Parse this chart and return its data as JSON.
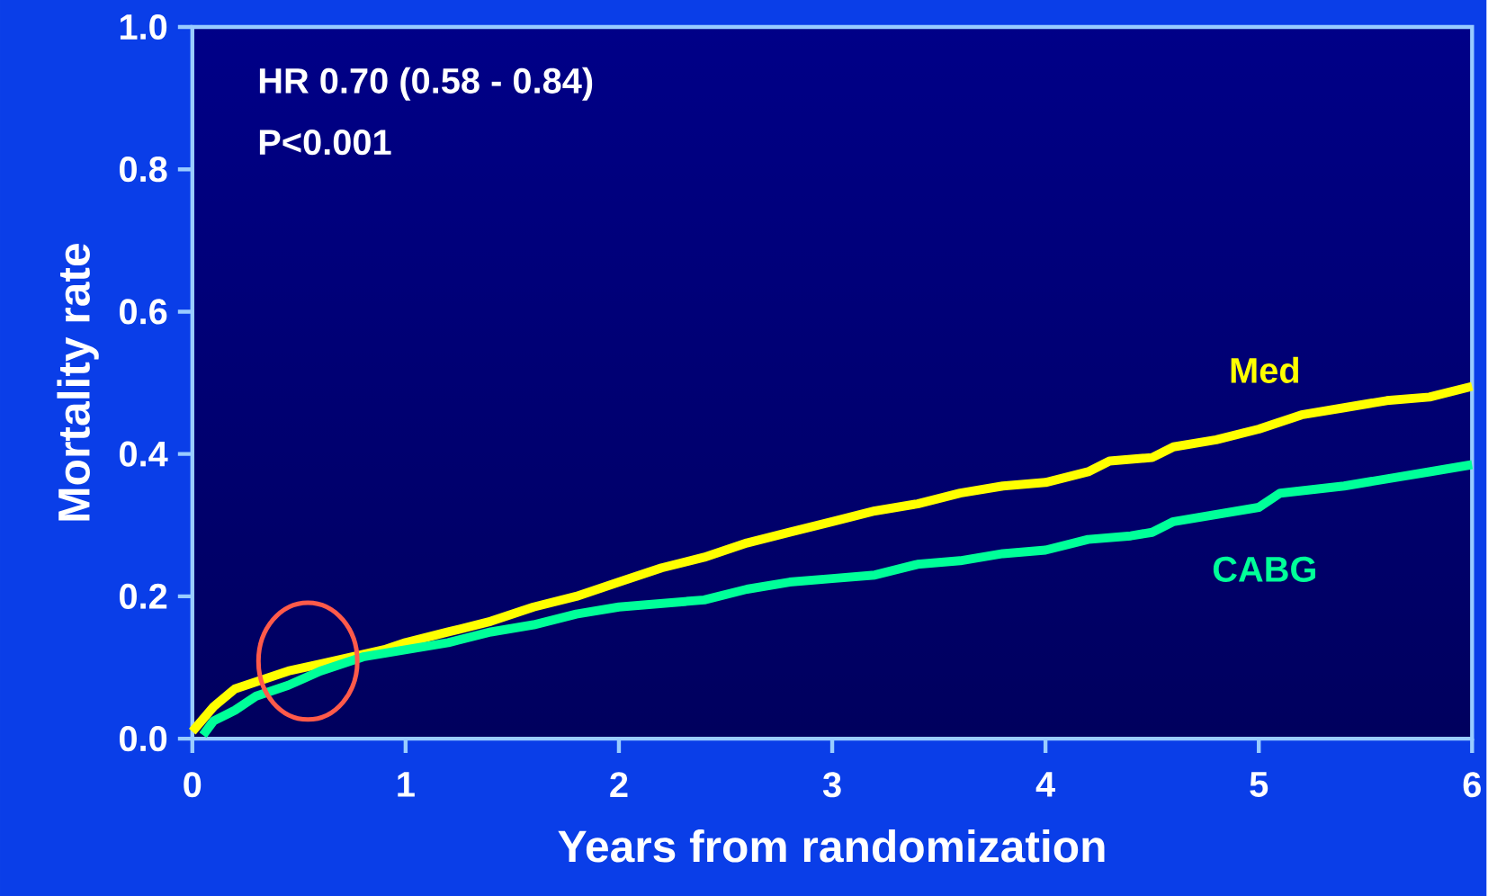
{
  "chart_data": {
    "type": "line",
    "xlabel": "Years from randomization",
    "ylabel": "Mortality rate",
    "annotations": [
      "HR 0.70 (0.58 - 0.84)",
      "P<0.001"
    ],
    "xlim": [
      0,
      6
    ],
    "ylim": [
      0,
      1
    ],
    "xticks": [
      0,
      1,
      2,
      3,
      4,
      5,
      6
    ],
    "yticks": [
      {
        "value": 0,
        "label": "0.0"
      },
      {
        "value": 0.2,
        "label": "0.2"
      },
      {
        "value": 0.4,
        "label": "0.4"
      },
      {
        "value": 0.6,
        "label": "0.6"
      },
      {
        "value": 0.8,
        "label": "0.8"
      },
      {
        "value": 1,
        "label": "1.0"
      }
    ],
    "grid": false,
    "legend": false,
    "marker": "none",
    "line_style": "solid",
    "series": [
      {
        "name": "Med",
        "color": "#ffff00",
        "x": [
          0,
          0.1,
          0.2,
          0.3,
          0.45,
          0.6,
          0.75,
          0.9,
          1.0,
          1.2,
          1.4,
          1.6,
          1.8,
          2.0,
          2.2,
          2.4,
          2.6,
          2.8,
          3.0,
          3.2,
          3.4,
          3.6,
          3.8,
          4.0,
          4.2,
          4.3,
          4.5,
          4.6,
          4.8,
          5.0,
          5.2,
          5.4,
          5.6,
          5.8,
          6.0
        ],
        "values": [
          0.01,
          0.045,
          0.07,
          0.08,
          0.095,
          0.105,
          0.115,
          0.125,
          0.135,
          0.15,
          0.165,
          0.185,
          0.2,
          0.22,
          0.24,
          0.255,
          0.275,
          0.29,
          0.305,
          0.32,
          0.33,
          0.345,
          0.355,
          0.36,
          0.375,
          0.39,
          0.395,
          0.41,
          0.42,
          0.435,
          0.455,
          0.465,
          0.475,
          0.48,
          0.495
        ]
      },
      {
        "name": "CABG",
        "color": "#00ff99",
        "x": [
          0.05,
          0.1,
          0.2,
          0.3,
          0.45,
          0.6,
          0.8,
          1.0,
          1.2,
          1.4,
          1.6,
          1.8,
          2.0,
          2.2,
          2.4,
          2.6,
          2.8,
          3.0,
          3.2,
          3.4,
          3.6,
          3.8,
          4.0,
          4.2,
          4.4,
          4.5,
          4.6,
          4.8,
          5.0,
          5.1,
          5.4,
          5.6,
          5.8,
          6.0
        ],
        "values": [
          0.005,
          0.025,
          0.04,
          0.06,
          0.075,
          0.095,
          0.115,
          0.125,
          0.135,
          0.15,
          0.16,
          0.175,
          0.185,
          0.19,
          0.195,
          0.21,
          0.22,
          0.225,
          0.23,
          0.245,
          0.25,
          0.26,
          0.265,
          0.28,
          0.285,
          0.29,
          0.305,
          0.315,
          0.325,
          0.345,
          0.355,
          0.365,
          0.375,
          0.385
        ]
      }
    ]
  }
}
